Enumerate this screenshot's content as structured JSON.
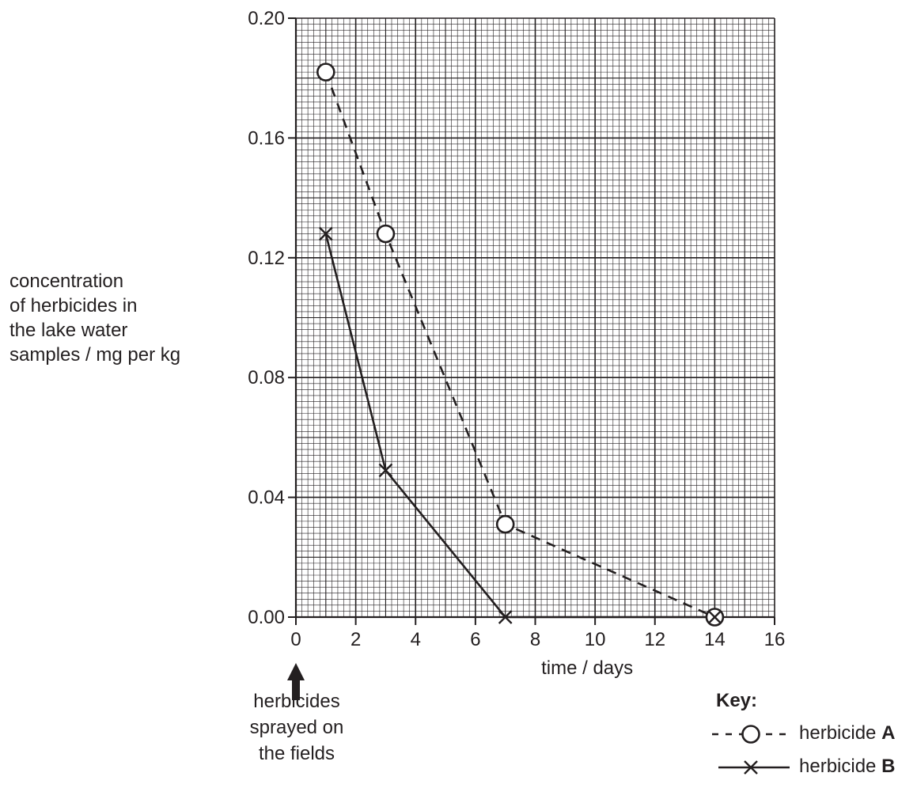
{
  "chart_data": {
    "type": "line",
    "xlabel": "time / days",
    "ylabel_lines": [
      "concentration",
      "of herbicides in",
      "the lake water",
      "samples / mg per kg"
    ],
    "xlim": [
      0,
      16
    ],
    "ylim": [
      0,
      0.2
    ],
    "x_ticks": [
      "0",
      "2",
      "4",
      "6",
      "8",
      "10",
      "12",
      "14",
      "16"
    ],
    "y_ticks": [
      "0.00",
      "0.04",
      "0.08",
      "0.12",
      "0.16",
      "0.20"
    ],
    "grid": true,
    "series": [
      {
        "name": "herbicide A",
        "marker": "circle",
        "line": "dashed",
        "x": [
          1,
          3,
          7,
          14
        ],
        "y": [
          0.182,
          0.128,
          0.031,
          0.0
        ]
      },
      {
        "name": "herbicide B",
        "marker": "cross",
        "line": "solid",
        "x": [
          1,
          3,
          7,
          14
        ],
        "y": [
          0.128,
          0.049,
          0.0,
          0.0
        ]
      }
    ],
    "annotation": {
      "x": 0,
      "lines": [
        "herbicides",
        "sprayed on",
        "the fields"
      ]
    },
    "legend": {
      "title": "Key:",
      "placement": "bottom-right",
      "items": [
        {
          "prefix": "herbicide",
          "letter": "A"
        },
        {
          "prefix": "herbicide",
          "letter": "B"
        }
      ]
    },
    "colors": {
      "ink": "#231f20",
      "background": "#ffffff"
    }
  }
}
